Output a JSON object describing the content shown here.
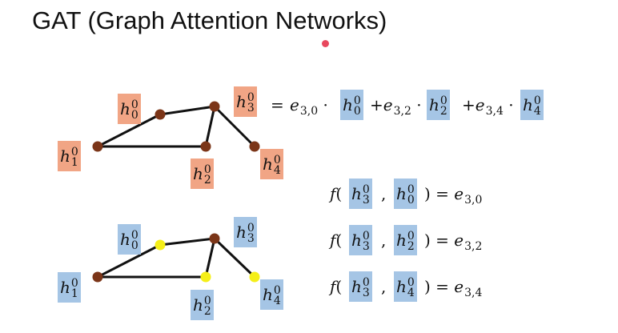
{
  "slide": {
    "title": "GAT (Graph Attention Networks)"
  },
  "colors": {
    "orange_box": "#f1a585",
    "blue_box": "#a5c5e5",
    "node_brown": "#7b3518",
    "node_yellow": "#f5ef18",
    "edge": "#111111",
    "pointer_dot": "#e8485e"
  },
  "equation": {
    "lhs": "h_3^0",
    "terms": [
      {
        "coef": "e_{3,0}",
        "h": "h_0^0"
      },
      {
        "coef": "e_{3,2}",
        "h": "h_2^0"
      },
      {
        "coef": "e_{3,4}",
        "h": "h_4^0"
      }
    ]
  },
  "attention": [
    {
      "fn": "f",
      "a": "h_3^0",
      "b": "h_0^0",
      "result": "e_{3,0}"
    },
    {
      "fn": "f",
      "a": "h_3^0",
      "b": "h_2^0",
      "result": "e_{3,2}"
    },
    {
      "fn": "f",
      "a": "h_3^0",
      "b": "h_4^0",
      "result": "e_{3,4}"
    }
  ]
}
